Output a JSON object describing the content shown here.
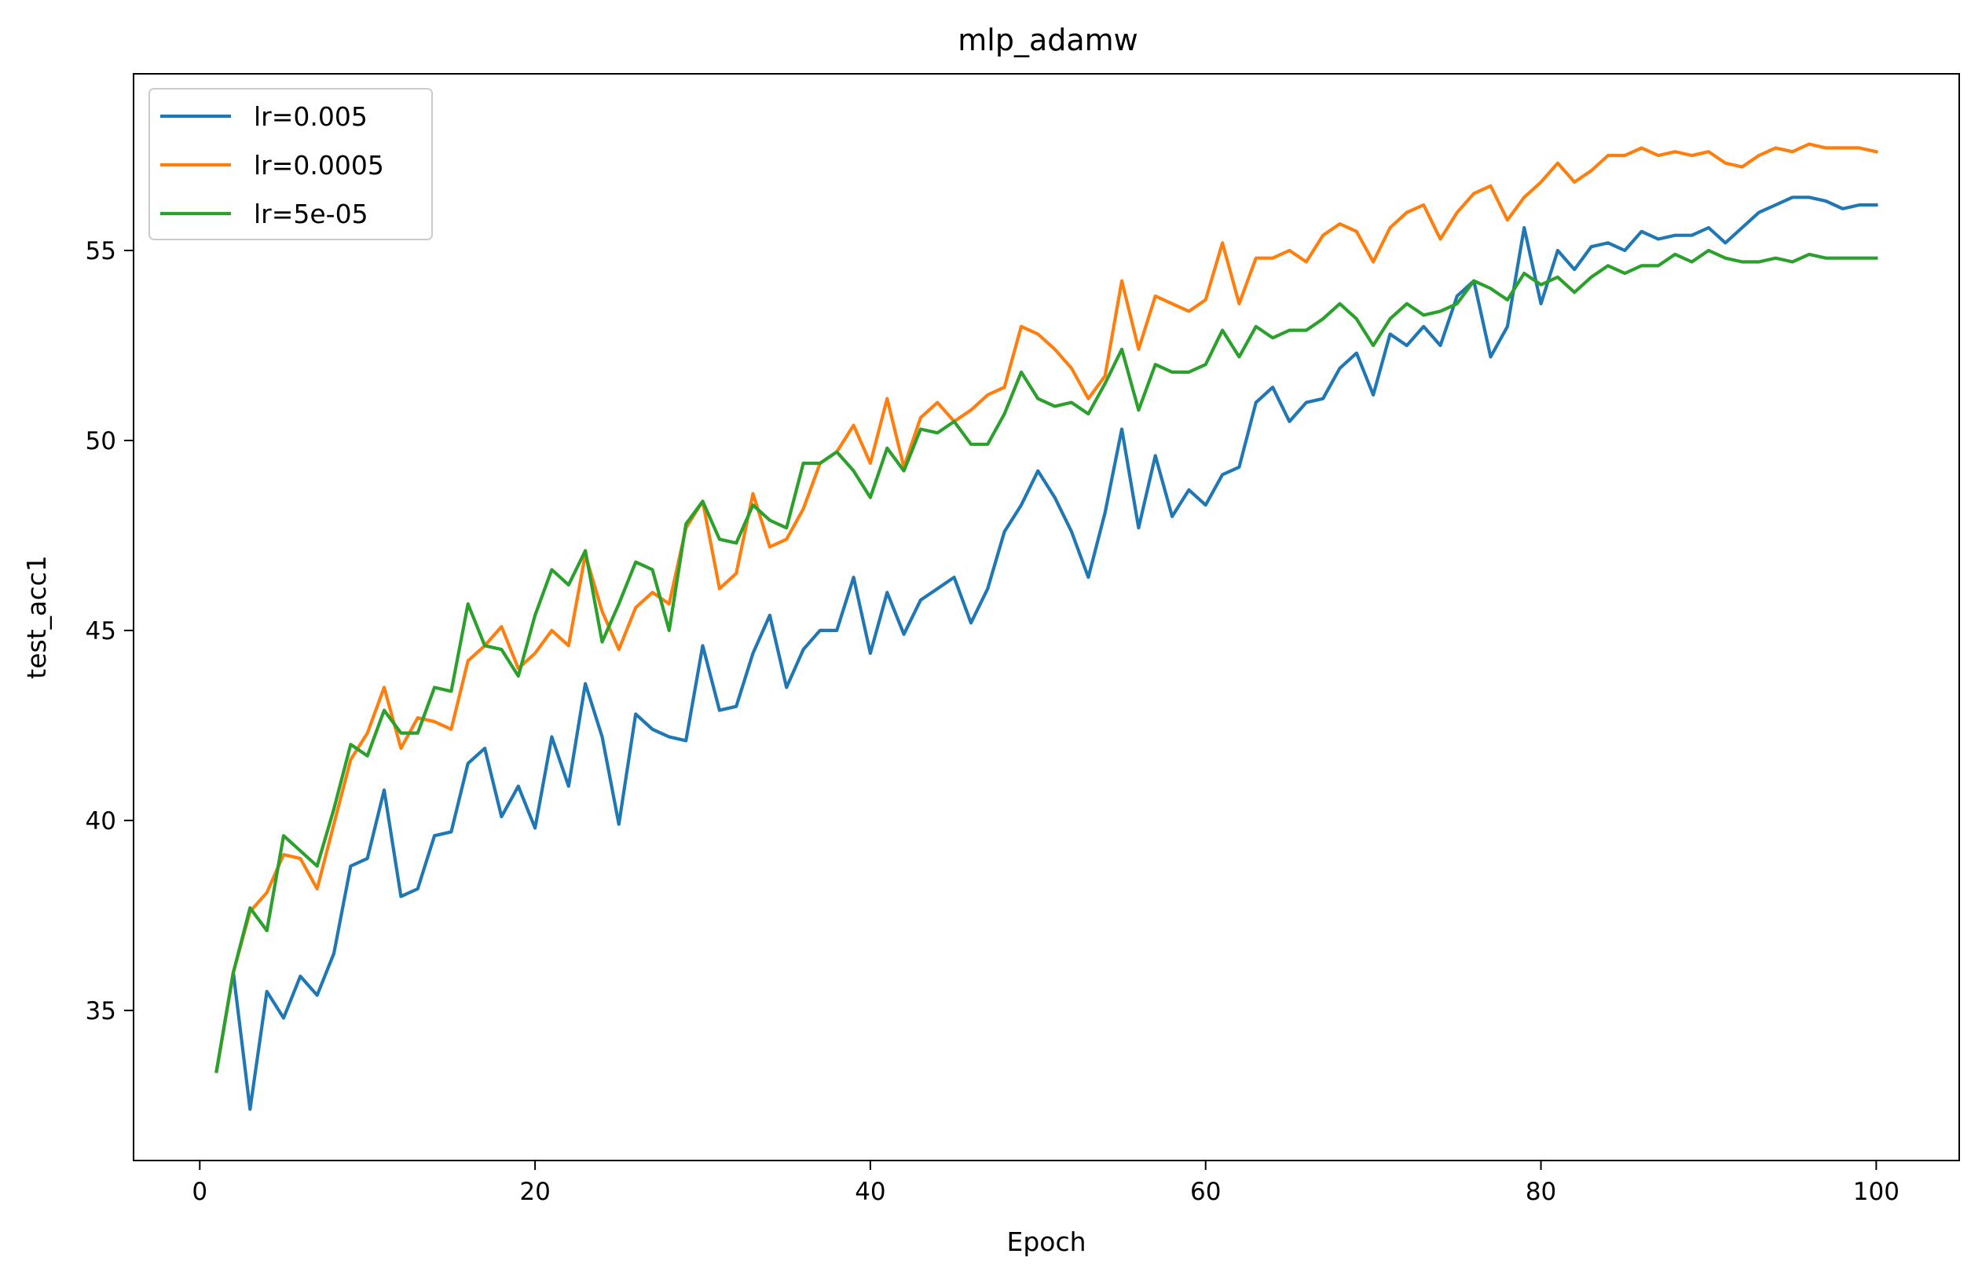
{
  "chart_data": {
    "type": "line",
    "title": "mlp_adamw",
    "xlabel": "Epoch",
    "ylabel": "test_acc1",
    "xlim": [
      -3.95,
      104.95
    ],
    "ylim": [
      31.05,
      59.65
    ],
    "xticks": [
      0,
      20,
      40,
      60,
      80,
      100
    ],
    "yticks": [
      35,
      40,
      45,
      50,
      55
    ],
    "grid": false,
    "legend_position": "upper left",
    "x": [
      1,
      2,
      3,
      4,
      5,
      6,
      7,
      8,
      9,
      10,
      11,
      12,
      13,
      14,
      15,
      16,
      17,
      18,
      19,
      20,
      21,
      22,
      23,
      24,
      25,
      26,
      27,
      28,
      29,
      30,
      31,
      32,
      33,
      34,
      35,
      36,
      37,
      38,
      39,
      40,
      41,
      42,
      43,
      44,
      45,
      46,
      47,
      48,
      49,
      50,
      51,
      52,
      53,
      54,
      55,
      56,
      57,
      58,
      59,
      60,
      61,
      62,
      63,
      64,
      65,
      66,
      67,
      68,
      69,
      70,
      71,
      72,
      73,
      74,
      75,
      76,
      77,
      78,
      79,
      80,
      81,
      82,
      83,
      84,
      85,
      86,
      87,
      88,
      89,
      90,
      91,
      92,
      93,
      94,
      95,
      96,
      97,
      98,
      99,
      100
    ],
    "series": [
      {
        "name": "lr=0.005",
        "color": "#1f77b4",
        "values": [
          33.4,
          36.0,
          32.4,
          35.5,
          34.8,
          35.9,
          35.4,
          36.5,
          38.8,
          39.0,
          40.8,
          38.0,
          38.2,
          39.6,
          39.7,
          41.5,
          41.9,
          40.1,
          40.9,
          39.8,
          42.2,
          40.9,
          43.6,
          42.2,
          39.9,
          42.8,
          42.4,
          42.2,
          42.1,
          44.6,
          42.9,
          43.0,
          44.4,
          45.4,
          43.5,
          44.5,
          45.0,
          45.0,
          46.4,
          44.4,
          46.0,
          44.9,
          45.8,
          46.1,
          46.4,
          45.2,
          46.1,
          47.6,
          48.3,
          49.2,
          48.5,
          47.6,
          46.4,
          48.1,
          50.3,
          47.7,
          49.6,
          48.0,
          48.7,
          48.3,
          49.1,
          49.3,
          51.0,
          51.4,
          50.5,
          51.0,
          51.1,
          51.9,
          52.3,
          51.2,
          52.8,
          52.5,
          53.0,
          52.5,
          53.8,
          54.2,
          52.2,
          53.0,
          55.6,
          53.6,
          55.0,
          54.5,
          55.1,
          55.2,
          55.0,
          55.5,
          55.3,
          55.4,
          55.4,
          55.6,
          55.2,
          55.6,
          56.0,
          56.2,
          56.4,
          56.4,
          56.3,
          56.1,
          56.2,
          56.2
        ]
      },
      {
        "name": "lr=0.0005",
        "color": "#ff7f0e",
        "values": [
          33.4,
          36.0,
          37.6,
          38.1,
          39.1,
          39.0,
          38.2,
          39.9,
          41.6,
          42.3,
          43.5,
          41.9,
          42.7,
          42.6,
          42.4,
          44.2,
          44.6,
          45.1,
          44.0,
          44.4,
          45.0,
          44.6,
          47.0,
          45.5,
          44.5,
          45.6,
          46.0,
          45.7,
          47.7,
          48.4,
          46.1,
          46.5,
          48.6,
          47.2,
          47.4,
          48.2,
          49.4,
          49.7,
          50.4,
          49.4,
          51.1,
          49.3,
          50.6,
          51.0,
          50.5,
          50.8,
          51.2,
          51.4,
          53.0,
          52.8,
          52.4,
          51.9,
          51.1,
          51.7,
          54.2,
          52.4,
          53.8,
          53.6,
          53.4,
          53.7,
          55.2,
          53.6,
          54.8,
          54.8,
          55.0,
          54.7,
          55.4,
          55.7,
          55.5,
          54.7,
          55.6,
          56.0,
          56.2,
          55.3,
          56.0,
          56.5,
          56.7,
          55.8,
          56.4,
          56.8,
          57.3,
          56.8,
          57.1,
          57.5,
          57.5,
          57.7,
          57.5,
          57.6,
          57.5,
          57.6,
          57.3,
          57.2,
          57.5,
          57.7,
          57.6,
          57.8,
          57.7,
          57.7,
          57.7,
          57.6
        ]
      },
      {
        "name": "lr=5e-05",
        "color": "#2ca02c",
        "values": [
          33.4,
          36.0,
          37.7,
          37.1,
          39.6,
          39.2,
          38.8,
          40.3,
          42.0,
          41.7,
          42.9,
          42.3,
          42.3,
          43.5,
          43.4,
          45.7,
          44.6,
          44.5,
          43.8,
          45.4,
          46.6,
          46.2,
          47.1,
          44.7,
          45.7,
          46.8,
          46.6,
          45.0,
          47.8,
          48.4,
          47.4,
          47.3,
          48.3,
          47.9,
          47.7,
          49.4,
          49.4,
          49.7,
          49.2,
          48.5,
          49.8,
          49.2,
          50.3,
          50.2,
          50.5,
          49.9,
          49.9,
          50.7,
          51.8,
          51.1,
          50.9,
          51.0,
          50.7,
          51.5,
          52.4,
          50.8,
          52.0,
          51.8,
          51.8,
          52.0,
          52.9,
          52.2,
          53.0,
          52.7,
          52.9,
          52.9,
          53.2,
          53.6,
          53.2,
          52.5,
          53.2,
          53.6,
          53.3,
          53.4,
          53.6,
          54.2,
          54.0,
          53.7,
          54.4,
          54.1,
          54.3,
          53.9,
          54.3,
          54.6,
          54.4,
          54.6,
          54.6,
          54.9,
          54.7,
          55.0,
          54.8,
          54.7,
          54.7,
          54.8,
          54.7,
          54.9,
          54.8,
          54.8,
          54.8,
          54.8
        ]
      }
    ]
  }
}
